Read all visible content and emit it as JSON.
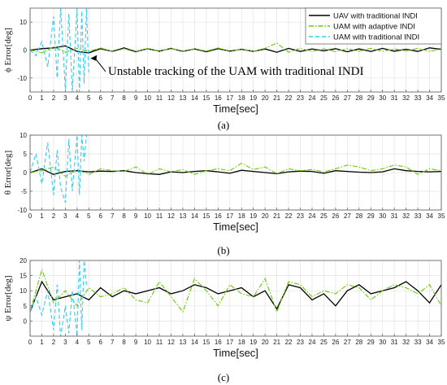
{
  "captions": [
    "(a)",
    "(b)",
    "(c)"
  ],
  "chart_data": [
    {
      "type": "line",
      "xlabel": "Time[sec]",
      "ylabel": "ϕ Error[deg]",
      "xlim": [
        0,
        35
      ],
      "ylim": [
        -15,
        15
      ],
      "xticks": [
        0,
        1,
        2,
        3,
        4,
        5,
        6,
        7,
        8,
        9,
        10,
        11,
        12,
        13,
        14,
        15,
        16,
        17,
        18,
        19,
        20,
        21,
        22,
        23,
        24,
        25,
        26,
        27,
        28,
        29,
        30,
        31,
        32,
        33,
        34,
        35
      ],
      "yticks": [
        -10,
        0,
        10
      ],
      "grid": true,
      "legend": "top-right",
      "annotation": "Unstable tracking of the UAM with traditional INDI",
      "annotation_arrow_to": [
        5,
        -3
      ],
      "series": [
        {
          "name": "UAV with traditional INDI",
          "color": "#000000",
          "style": "solid",
          "x": [
            0,
            1,
            2,
            3,
            4,
            5,
            6,
            7,
            8,
            9,
            10,
            11,
            12,
            13,
            14,
            15,
            16,
            17,
            18,
            19,
            20,
            21,
            22,
            23,
            24,
            25,
            26,
            27,
            28,
            29,
            30,
            31,
            32,
            33,
            34,
            35
          ],
          "y": [
            0,
            0.5,
            0.8,
            1.5,
            -0.5,
            -1,
            0.5,
            -0.5,
            0.8,
            -0.6,
            0.5,
            -0.4,
            0.6,
            -0.5,
            0.4,
            -0.6,
            0.5,
            -0.4,
            0.3,
            -0.5,
            0.4,
            -0.8,
            0.6,
            -0.5,
            0.4,
            -0.3,
            0.5,
            -0.6,
            0.4,
            -0.5,
            0.6,
            -0.4,
            0.3,
            -0.5,
            0.8,
            0.3
          ]
        },
        {
          "name": "UAM with adaptive INDI",
          "color": "#66cc00",
          "style": "dashdot",
          "x": [
            0,
            1,
            2,
            3,
            4,
            5,
            6,
            7,
            8,
            9,
            10,
            11,
            12,
            13,
            14,
            15,
            16,
            17,
            18,
            19,
            20,
            21,
            22,
            23,
            24,
            25,
            26,
            27,
            28,
            29,
            30,
            31,
            32,
            33,
            34,
            35
          ],
          "y": [
            0,
            -1,
            1.2,
            -0.8,
            0.6,
            -0.5,
            0.8,
            -0.6,
            0.5,
            -0.8,
            0.6,
            -0.5,
            0.7,
            -0.6,
            0.5,
            -0.4,
            0.8,
            -0.6,
            0.4,
            -0.5,
            0.6,
            2.5,
            -0.8,
            0.6,
            -0.5,
            0.4,
            -0.6,
            0.5,
            -0.4,
            0.6,
            -0.5,
            0.4,
            -0.3,
            0.6,
            -0.5,
            0.4
          ]
        },
        {
          "name": "UAM with traditional INDI",
          "color": "#33ccee",
          "style": "dashed",
          "x": [
            0,
            0.5,
            1,
            1.5,
            2,
            2.3,
            2.6,
            3,
            3.3,
            3.6,
            4,
            4.2,
            4.4,
            4.6,
            4.8,
            5
          ],
          "y": [
            0,
            -2,
            3,
            -6,
            12,
            -10,
            15,
            -14,
            13,
            -15,
            15,
            -15,
            14,
            -12,
            15,
            -8
          ]
        }
      ]
    },
    {
      "type": "line",
      "xlabel": "Time[sec]",
      "ylabel": "θ Error[deg]",
      "xlim": [
        0,
        35
      ],
      "ylim": [
        -10,
        10
      ],
      "xticks": [
        0,
        1,
        2,
        3,
        4,
        5,
        6,
        7,
        8,
        9,
        10,
        11,
        12,
        13,
        14,
        15,
        16,
        17,
        18,
        19,
        20,
        21,
        22,
        23,
        24,
        25,
        26,
        27,
        28,
        29,
        30,
        31,
        32,
        33,
        34,
        35
      ],
      "yticks": [
        -10,
        -5,
        0,
        5,
        10
      ],
      "grid": true,
      "series": [
        {
          "name": "UAV with traditional INDI",
          "color": "#000000",
          "style": "solid",
          "x": [
            0,
            1,
            2,
            3,
            4,
            5,
            6,
            7,
            8,
            9,
            10,
            11,
            12,
            13,
            14,
            15,
            16,
            17,
            18,
            19,
            20,
            21,
            22,
            23,
            24,
            25,
            26,
            27,
            28,
            29,
            30,
            31,
            32,
            33,
            34,
            35
          ],
          "y": [
            0,
            1,
            -0.5,
            0.3,
            0.5,
            0.2,
            0.4,
            0.3,
            0.5,
            0,
            -0.3,
            -0.5,
            0.2,
            0,
            0.3,
            0.5,
            0.2,
            -0.2,
            0.6,
            0.3,
            0,
            -0.3,
            0.2,
            0.4,
            0.3,
            -0.2,
            0.5,
            0.3,
            0.1,
            0,
            0.2,
            1,
            0.5,
            0.3,
            0.2,
            0.3
          ]
        },
        {
          "name": "UAM with adaptive INDI",
          "color": "#66cc00",
          "style": "dashdot",
          "x": [
            0,
            1,
            2,
            3,
            4,
            5,
            6,
            7,
            8,
            9,
            10,
            11,
            12,
            13,
            14,
            15,
            16,
            17,
            18,
            19,
            20,
            21,
            22,
            23,
            24,
            25,
            26,
            27,
            28,
            29,
            30,
            31,
            32,
            33,
            34,
            35
          ],
          "y": [
            0,
            0.5,
            1.5,
            -1,
            0.8,
            -0.5,
            1,
            0.5,
            0.3,
            1.5,
            -0.5,
            1,
            0.2,
            0.8,
            -0.5,
            0.5,
            1,
            0.5,
            2.5,
            0.8,
            1.5,
            -0.3,
            1,
            0.5,
            0.8,
            0.2,
            1,
            2,
            1.5,
            0.5,
            1,
            2,
            1.5,
            -0.5,
            1,
            0.5
          ]
        },
        {
          "name": "UAM with traditional INDI",
          "color": "#33ccee",
          "style": "dashed",
          "x": [
            0,
            0.5,
            1,
            1.5,
            2,
            2.3,
            2.6,
            3,
            3.3,
            3.6,
            4,
            4.2,
            4.4,
            4.6,
            4.8
          ],
          "y": [
            0,
            5,
            -3,
            8,
            -6,
            6,
            -4,
            -8,
            9,
            -5,
            10,
            -6,
            10,
            3,
            10
          ]
        }
      ]
    },
    {
      "type": "line",
      "xlabel": "Time[sec]",
      "ylabel": "ψ Error[deg]",
      "xlim": [
        0,
        35
      ],
      "ylim": [
        -5,
        20
      ],
      "xticks": [
        0,
        1,
        2,
        3,
        4,
        5,
        6,
        7,
        8,
        9,
        10,
        11,
        12,
        13,
        14,
        15,
        16,
        17,
        18,
        19,
        20,
        21,
        22,
        23,
        24,
        25,
        26,
        27,
        28,
        29,
        30,
        31,
        32,
        33,
        34,
        35
      ],
      "yticks": [
        0,
        5,
        10,
        15,
        20
      ],
      "grid": true,
      "series": [
        {
          "name": "UAV with traditional INDI",
          "color": "#000000",
          "style": "solid",
          "x": [
            0,
            1,
            2,
            3,
            4,
            5,
            6,
            7,
            8,
            9,
            10,
            11,
            12,
            13,
            14,
            15,
            16,
            17,
            18,
            19,
            20,
            21,
            22,
            23,
            24,
            25,
            26,
            27,
            28,
            29,
            30,
            31,
            32,
            33,
            34,
            35
          ],
          "y": [
            3,
            13,
            7,
            8,
            9,
            7,
            11,
            8,
            10,
            9,
            10,
            11,
            9,
            10,
            12,
            11,
            9,
            10,
            11,
            8,
            10,
            4,
            12,
            11,
            7,
            9,
            5,
            10,
            12,
            9,
            10,
            11,
            13,
            10,
            6,
            12
          ]
        },
        {
          "name": "UAM with adaptive INDI",
          "color": "#66cc00",
          "style": "dashdot",
          "x": [
            0,
            1,
            2,
            3,
            4,
            5,
            6,
            7,
            8,
            9,
            10,
            11,
            12,
            13,
            14,
            15,
            16,
            17,
            18,
            19,
            20,
            21,
            22,
            23,
            24,
            25,
            26,
            27,
            28,
            29,
            30,
            31,
            32,
            33,
            34,
            35
          ],
          "y": [
            3,
            17,
            6,
            10,
            5,
            11,
            8,
            9,
            11,
            7,
            6,
            13,
            8,
            3,
            14,
            10,
            5,
            12,
            9,
            8,
            14,
            3,
            13,
            12,
            8,
            10,
            9,
            12,
            11,
            7,
            10,
            12,
            11,
            9,
            12,
            5
          ]
        },
        {
          "name": "UAM with traditional INDI",
          "color": "#33ccee",
          "style": "dashed",
          "x": [
            0,
            0.5,
            1,
            1.5,
            2,
            2.3,
            2.6,
            3,
            3.3,
            3.6,
            4,
            4.2,
            4.4,
            4.6,
            4.8
          ],
          "y": [
            3,
            8,
            2,
            10,
            -3,
            12,
            -5,
            5,
            -4,
            10,
            -5,
            20,
            -3,
            20,
            12
          ]
        }
      ]
    }
  ]
}
